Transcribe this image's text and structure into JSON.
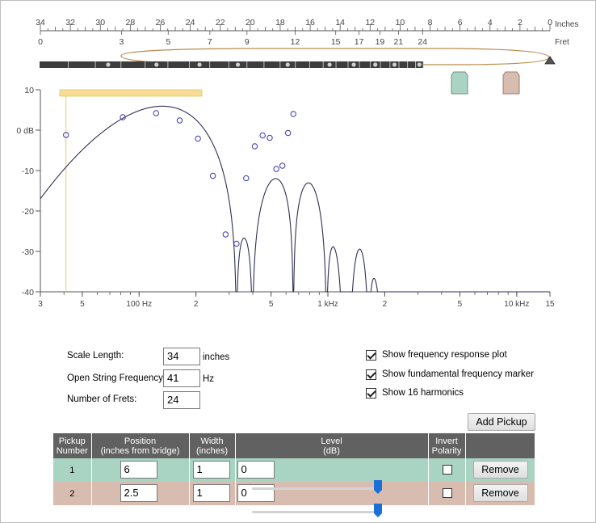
{
  "ruler": {
    "inch_label": "Inches",
    "fret_label": "Fret",
    "inch_ticks": [
      "34",
      "32",
      "30",
      "28",
      "26",
      "24",
      "22",
      "20",
      "18",
      "16",
      "14",
      "12",
      "10",
      "8",
      "6",
      "4",
      "2",
      "0"
    ],
    "fret_ticks": [
      "0",
      "3",
      "5",
      "7",
      "9",
      "12",
      "15",
      "17",
      "19",
      "21",
      "24"
    ]
  },
  "pickup_markers": [
    {
      "color": "#a9d4c3"
    },
    {
      "color": "#d8bcaf"
    }
  ],
  "chart_data": {
    "type": "line",
    "xscale": "log",
    "xlim_hz": [
      30,
      15000
    ],
    "ylim_db": [
      -40,
      10
    ],
    "ylabel_unit": "dB",
    "y_ticks": [
      "10",
      "0 dB",
      "-10",
      "-20",
      "-30",
      "-40"
    ],
    "x_ticks": [
      "3",
      "5",
      "100 Hz",
      "2",
      "5",
      "1 kHz",
      "2",
      "5",
      "10 kHz",
      "15"
    ],
    "fundamental_hz": 41,
    "fundamental_range_hz": [
      38,
      215
    ],
    "harmonics": [
      {
        "n": 1,
        "freq": 41,
        "db": -1.2
      },
      {
        "n": 2,
        "freq": 82,
        "db": 3.2
      },
      {
        "n": 3,
        "freq": 123,
        "db": 4.2
      },
      {
        "n": 4,
        "freq": 164,
        "db": 2.4
      },
      {
        "n": 5,
        "freq": 205,
        "db": -2.1
      },
      {
        "n": 6,
        "freq": 246,
        "db": -11.3
      },
      {
        "n": 7,
        "freq": 287,
        "db": -25.8
      },
      {
        "n": 8,
        "freq": 328,
        "db": -28.1
      },
      {
        "n": 9,
        "freq": 369,
        "db": -11.9
      },
      {
        "n": 10,
        "freq": 410,
        "db": -4.0
      },
      {
        "n": 11,
        "freq": 451,
        "db": -1.3
      },
      {
        "n": 12,
        "freq": 492,
        "db": -1.9
      },
      {
        "n": 13,
        "freq": 533,
        "db": -9.6
      },
      {
        "n": 14,
        "freq": 574,
        "db": -8.8
      },
      {
        "n": 15,
        "freq": 615,
        "db": -0.7
      },
      {
        "n": 16,
        "freq": 656,
        "db": 4.0
      }
    ]
  },
  "settings": {
    "scale_length_label": "Scale Length:",
    "scale_length_value": "34",
    "scale_length_unit": "inches",
    "open_freq_label": "Open String Frequency:",
    "open_freq_value": "41",
    "open_freq_unit": "Hz",
    "frets_label": "Number of Frets:",
    "frets_value": "24"
  },
  "options": {
    "show_response": {
      "label": "Show frequency response plot",
      "checked": true
    },
    "show_fundamental": {
      "label": "Show fundamental frequency marker",
      "checked": true
    },
    "show_harmonics": {
      "label": "Show 16 harmonics",
      "checked": true
    }
  },
  "add_pickup_label": "Add Pickup",
  "table": {
    "headers": {
      "number_1": "Pickup",
      "number_2": "Number",
      "position_1": "Position",
      "position_2": "(inches from bridge)",
      "width_1": "Width",
      "width_2": "(inches)",
      "level_1": "Level",
      "level_2": "(dB)",
      "invert_1": "Invert",
      "invert_2": "Polarity"
    },
    "rows": [
      {
        "number": "1",
        "position": "6",
        "width": "1",
        "level": "0",
        "level_slider_fraction": 1.0,
        "invert": false,
        "remove_label": "Remove",
        "color": "#a9d4c3"
      },
      {
        "number": "2",
        "position": "2.5",
        "width": "1",
        "level": "0",
        "level_slider_fraction": 1.0,
        "invert": false,
        "remove_label": "Remove",
        "color": "#d8bcaf"
      }
    ]
  }
}
